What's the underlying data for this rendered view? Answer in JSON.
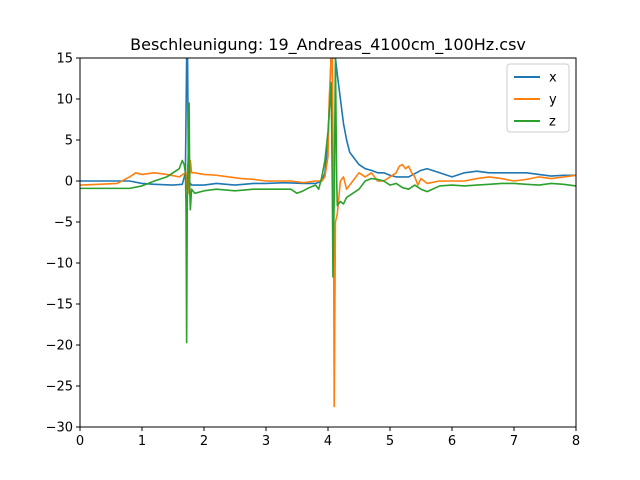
{
  "chart_data": {
    "type": "line",
    "title": "Beschleunigung: 19_Andreas_4100cm_100Hz.csv",
    "xlabel": "",
    "ylabel": "",
    "xlim": [
      0,
      8
    ],
    "ylim": [
      -30,
      15
    ],
    "xticks": [
      0,
      1,
      2,
      3,
      4,
      5,
      6,
      7,
      8
    ],
    "yticks": [
      -30,
      -25,
      -20,
      -15,
      -10,
      -5,
      0,
      5,
      10,
      15
    ],
    "grid": false,
    "legend": "top-right",
    "series": [
      {
        "name": "x",
        "color": "#1f77b4",
        "points": [
          [
            0,
            0
          ],
          [
            0.5,
            0
          ],
          [
            0.8,
            0
          ],
          [
            1.0,
            -0.3
          ],
          [
            1.2,
            -0.4
          ],
          [
            1.5,
            -0.5
          ],
          [
            1.65,
            -0.4
          ],
          [
            1.7,
            1
          ],
          [
            1.72,
            15
          ],
          [
            1.735,
            15
          ],
          [
            1.75,
            0
          ],
          [
            1.8,
            -0.5
          ],
          [
            2.0,
            -0.5
          ],
          [
            2.2,
            -0.3
          ],
          [
            2.5,
            -0.5
          ],
          [
            2.8,
            -0.3
          ],
          [
            3.0,
            -0.3
          ],
          [
            3.3,
            -0.2
          ],
          [
            3.6,
            -0.3
          ],
          [
            3.8,
            -0.3
          ],
          [
            3.9,
            0
          ],
          [
            3.95,
            1
          ],
          [
            4.0,
            5
          ],
          [
            4.05,
            15
          ],
          [
            4.12,
            15
          ],
          [
            4.15,
            13
          ],
          [
            4.2,
            10
          ],
          [
            4.25,
            7
          ],
          [
            4.3,
            5
          ],
          [
            4.35,
            3.5
          ],
          [
            4.4,
            3
          ],
          [
            4.45,
            2.5
          ],
          [
            4.5,
            2
          ],
          [
            4.6,
            1.5
          ],
          [
            4.7,
            1.3
          ],
          [
            4.8,
            1.0
          ],
          [
            4.9,
            1.0
          ],
          [
            5.0,
            0.7
          ],
          [
            5.1,
            0.5
          ],
          [
            5.3,
            0.5
          ],
          [
            5.5,
            1.3
          ],
          [
            5.6,
            1.5
          ],
          [
            5.8,
            1.0
          ],
          [
            6.0,
            0.5
          ],
          [
            6.2,
            1.0
          ],
          [
            6.4,
            1.2
          ],
          [
            6.6,
            1.0
          ],
          [
            6.8,
            1.0
          ],
          [
            7.0,
            1.0
          ],
          [
            7.2,
            1.0
          ],
          [
            7.4,
            0.8
          ],
          [
            7.6,
            0.6
          ],
          [
            7.8,
            0.7
          ],
          [
            8.0,
            0.7
          ]
        ]
      },
      {
        "name": "y",
        "color": "#ff7f0e",
        "points": [
          [
            0,
            -0.5
          ],
          [
            0.3,
            -0.4
          ],
          [
            0.6,
            -0.3
          ],
          [
            0.8,
            0.5
          ],
          [
            0.9,
            1.0
          ],
          [
            1.0,
            0.8
          ],
          [
            1.2,
            1.0
          ],
          [
            1.4,
            0.8
          ],
          [
            1.6,
            0.5
          ],
          [
            1.7,
            1
          ],
          [
            1.72,
            -1
          ],
          [
            1.74,
            2
          ],
          [
            1.76,
            -1.5
          ],
          [
            1.78,
            2.5
          ],
          [
            1.8,
            1
          ],
          [
            1.85,
            1
          ],
          [
            2.0,
            0.8
          ],
          [
            2.2,
            0.7
          ],
          [
            2.4,
            0.5
          ],
          [
            2.6,
            0.3
          ],
          [
            2.8,
            0.2
          ],
          [
            3.0,
            0
          ],
          [
            3.2,
            0
          ],
          [
            3.4,
            0
          ],
          [
            3.6,
            -0.2
          ],
          [
            3.8,
            0
          ],
          [
            3.9,
            0
          ],
          [
            3.95,
            0.5
          ],
          [
            4.0,
            3
          ],
          [
            4.02,
            10
          ],
          [
            4.05,
            15
          ],
          [
            4.07,
            15
          ],
          [
            4.09,
            -5
          ],
          [
            4.1,
            -27.5
          ],
          [
            4.12,
            -5
          ],
          [
            4.15,
            -4
          ],
          [
            4.2,
            0
          ],
          [
            4.25,
            0.5
          ],
          [
            4.3,
            -1
          ],
          [
            4.4,
            0
          ],
          [
            4.5,
            1
          ],
          [
            4.6,
            0.5
          ],
          [
            4.7,
            1
          ],
          [
            4.8,
            0
          ],
          [
            4.9,
            0
          ],
          [
            5.0,
            0.5
          ],
          [
            5.1,
            1.0
          ],
          [
            5.15,
            1.8
          ],
          [
            5.2,
            2.0
          ],
          [
            5.25,
            1.5
          ],
          [
            5.3,
            1.8
          ],
          [
            5.35,
            1.0
          ],
          [
            5.4,
            0.5
          ],
          [
            5.45,
            -0.5
          ],
          [
            5.5,
            0.3
          ],
          [
            5.6,
            -0.3
          ],
          [
            5.8,
            0
          ],
          [
            6.0,
            0
          ],
          [
            6.2,
            0
          ],
          [
            6.4,
            0.3
          ],
          [
            6.6,
            0.5
          ],
          [
            6.8,
            0.3
          ],
          [
            7.0,
            0
          ],
          [
            7.2,
            0.2
          ],
          [
            7.4,
            0.5
          ],
          [
            7.6,
            0.3
          ],
          [
            7.8,
            0.5
          ],
          [
            8.0,
            0.7
          ]
        ]
      },
      {
        "name": "z",
        "color": "#2ca02c",
        "points": [
          [
            0,
            -0.9
          ],
          [
            0.5,
            -0.9
          ],
          [
            0.8,
            -0.9
          ],
          [
            1.0,
            -0.6
          ],
          [
            1.2,
            0
          ],
          [
            1.4,
            0.5
          ],
          [
            1.6,
            1.5
          ],
          [
            1.65,
            2.5
          ],
          [
            1.68,
            2
          ],
          [
            1.7,
            1
          ],
          [
            1.71,
            -3
          ],
          [
            1.72,
            -19.7
          ],
          [
            1.73,
            -3
          ],
          [
            1.75,
            5
          ],
          [
            1.76,
            9.5
          ],
          [
            1.77,
            -1
          ],
          [
            1.78,
            -3.5
          ],
          [
            1.8,
            -1
          ],
          [
            1.85,
            -1.5
          ],
          [
            2.0,
            -1.2
          ],
          [
            2.2,
            -1.0
          ],
          [
            2.5,
            -1.2
          ],
          [
            2.8,
            -1.0
          ],
          [
            3.0,
            -1.0
          ],
          [
            3.2,
            -1.0
          ],
          [
            3.4,
            -1.0
          ],
          [
            3.5,
            -1.5
          ],
          [
            3.6,
            -1.2
          ],
          [
            3.7,
            -0.8
          ],
          [
            3.8,
            -0.5
          ],
          [
            3.85,
            -1
          ],
          [
            3.9,
            0.5
          ],
          [
            3.95,
            2.5
          ],
          [
            4.0,
            6
          ],
          [
            4.05,
            12
          ],
          [
            4.07,
            -1
          ],
          [
            4.08,
            -11.7
          ],
          [
            4.1,
            -2
          ],
          [
            4.12,
            15
          ],
          [
            4.14,
            0
          ],
          [
            4.15,
            -3
          ],
          [
            4.2,
            -2.5
          ],
          [
            4.25,
            -2.8
          ],
          [
            4.3,
            -2.0
          ],
          [
            4.4,
            -1.5
          ],
          [
            4.5,
            -1.0
          ],
          [
            4.6,
            0
          ],
          [
            4.7,
            0.3
          ],
          [
            4.8,
            0.2
          ],
          [
            4.9,
            0
          ],
          [
            5.0,
            -0.5
          ],
          [
            5.1,
            -0.3
          ],
          [
            5.2,
            -0.8
          ],
          [
            5.3,
            -1.0
          ],
          [
            5.4,
            -0.5
          ],
          [
            5.5,
            -1.0
          ],
          [
            5.6,
            -1.3
          ],
          [
            5.8,
            -0.6
          ],
          [
            6.0,
            -0.5
          ],
          [
            6.2,
            -0.6
          ],
          [
            6.4,
            -0.5
          ],
          [
            6.6,
            -0.4
          ],
          [
            6.8,
            -0.3
          ],
          [
            7.0,
            -0.3
          ],
          [
            7.2,
            -0.4
          ],
          [
            7.4,
            -0.5
          ],
          [
            7.6,
            -0.3
          ],
          [
            7.8,
            -0.4
          ],
          [
            8.0,
            -0.6
          ]
        ]
      }
    ]
  }
}
